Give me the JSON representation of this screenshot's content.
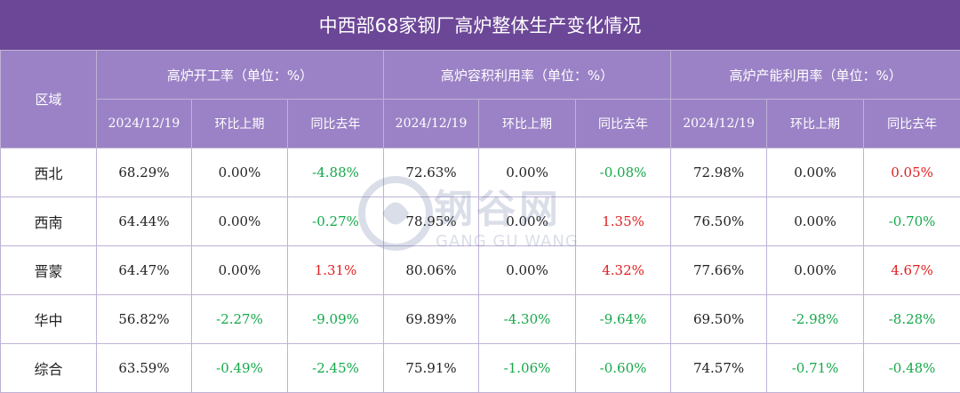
{
  "title": "中西部68家钢厂高炉整体生产变化情况",
  "header": {
    "region": "区域",
    "groups": [
      "高炉开工率（单位：%）",
      "高炉容积利用率（单位：%）",
      "高炉产能利用率（单位：%）"
    ],
    "sub": [
      "2024/12/19",
      "环比上期",
      "同比去年"
    ]
  },
  "rows": [
    {
      "region": "西北",
      "v": [
        "68.29%",
        "0.00%",
        "-4.88%",
        "72.63%",
        "0.00%",
        "-0.08%",
        "72.98%",
        "0.00%",
        "0.05%"
      ]
    },
    {
      "region": "西南",
      "v": [
        "64.44%",
        "0.00%",
        "-0.27%",
        "78.95%",
        "0.00%",
        "1.35%",
        "76.50%",
        "0.00%",
        "-0.70%"
      ]
    },
    {
      "region": "晋蒙",
      "v": [
        "64.47%",
        "0.00%",
        "1.31%",
        "80.06%",
        "0.00%",
        "4.32%",
        "77.66%",
        "0.00%",
        "4.67%"
      ]
    },
    {
      "region": "华中",
      "v": [
        "56.82%",
        "-2.27%",
        "-9.09%",
        "69.89%",
        "-4.30%",
        "-9.64%",
        "69.50%",
        "-2.98%",
        "-8.28%"
      ]
    },
    {
      "region": "综合",
      "v": [
        "63.59%",
        "-0.49%",
        "-2.45%",
        "75.91%",
        "-1.06%",
        "-0.60%",
        "74.57%",
        "-0.71%",
        "-0.48%"
      ]
    }
  ],
  "watermark": {
    "main": "钢谷网",
    "sub": "GANG GU WANG"
  },
  "colors": {
    "title_bg": "#6c4797",
    "header_bg": "#9b82c6",
    "positive": "#e02020",
    "negative": "#15a84a"
  }
}
